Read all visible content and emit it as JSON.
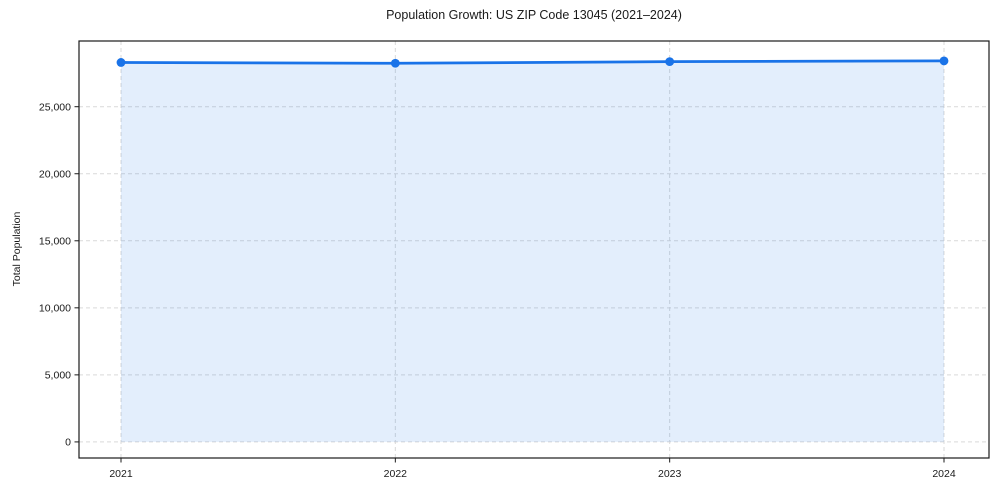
{
  "page": {
    "background": "#ffffff"
  },
  "chart_data": {
    "type": "area",
    "title": "Population Growth: US ZIP Code 13045 (2021–2024)",
    "xlabel": "",
    "ylabel": "Total Population",
    "x": [
      2021,
      2022,
      2023,
      2024
    ],
    "xtick_labels": [
      "2021",
      "2022",
      "2023",
      "2024"
    ],
    "values": [
      28300,
      28240,
      28360,
      28420
    ],
    "yticks": [
      0,
      5000,
      10000,
      15000,
      20000,
      25000
    ],
    "ytick_labels": [
      "0",
      "5,000",
      "10,000",
      "15,000",
      "20,000",
      "25,000"
    ],
    "ylim": [
      -1200,
      29900
    ],
    "grid": true,
    "grid_style": "dashed",
    "legend_position": "none",
    "line_color": "#1a73e8",
    "marker": "circle",
    "fill_color": "#1a73e8",
    "fill_opacity": 0.12,
    "grid_color": "#d9d9d9",
    "axis_color": "#1a1a1a",
    "text_color": "#1a1a1a"
  }
}
